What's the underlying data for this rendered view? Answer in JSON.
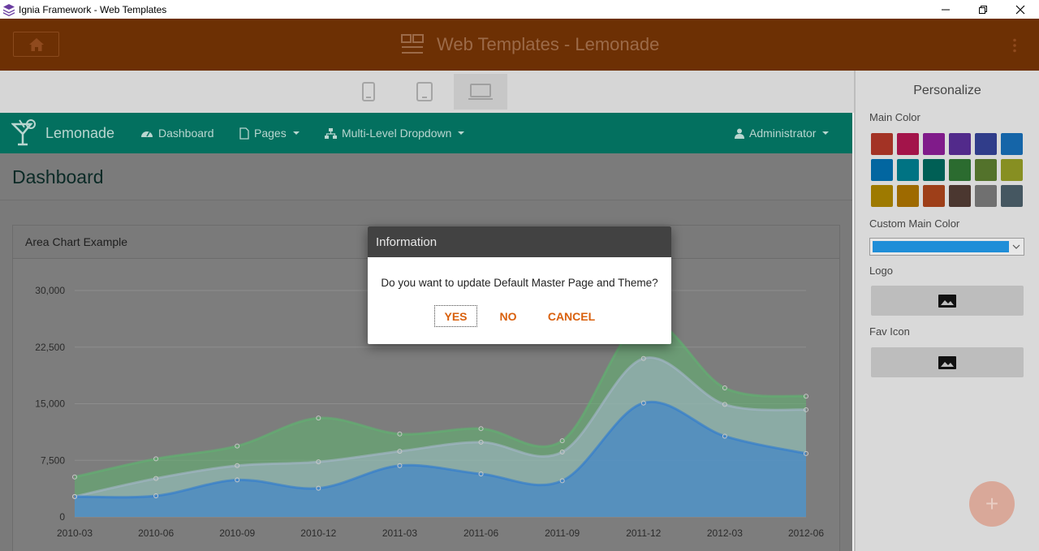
{
  "window": {
    "title": "Ignia Framework - Web Templates",
    "controls": [
      "minimize",
      "restore",
      "close"
    ]
  },
  "header": {
    "title": "Web Templates - Lemonade",
    "icons": [
      "home-icon",
      "layout-icon",
      "more-vert-icon"
    ]
  },
  "devices": [
    "phone",
    "tablet",
    "laptop"
  ],
  "panel": {
    "title": "Personalize",
    "main_color_label": "Main Color",
    "swatches": [
      "#a33325",
      "#a3144a",
      "#801b8a",
      "#522a8b",
      "#303d8a",
      "#1565a8",
      "#0266a0",
      "#007383",
      "#005f55",
      "#2b6b2f",
      "#53722b",
      "#878f22",
      "#9e7a00",
      "#9e6a00",
      "#9e3f19",
      "#4b3730",
      "#707070",
      "#455761"
    ],
    "custom_color_label": "Custom Main Color",
    "custom_color_value": "#1f8ed8",
    "logo_label": "Logo",
    "fav_icon_label": "Fav Icon",
    "fab_label": "+"
  },
  "site": {
    "brand": "Lemonade",
    "nav": {
      "dashboard": "Dashboard",
      "pages": "Pages",
      "multilevel": "Multi-Level Dropdown",
      "user": "Administrator"
    },
    "page_title": "Dashboard",
    "card_title": "Area Chart Example"
  },
  "chart_data": {
    "type": "area",
    "title": "Area Chart Example",
    "stacked": true,
    "categories": [
      "2010-03",
      "2010-06",
      "2010-09",
      "2010-12",
      "2011-03",
      "2011-06",
      "2011-09",
      "2011-12",
      "2012-03",
      "2012-06"
    ],
    "y_ticks": [
      "0",
      "7,500",
      "15,000",
      "22,500",
      "30,000"
    ],
    "ylim": [
      0,
      30000
    ],
    "grid": true,
    "series": [
      {
        "color": "#2c7ad1",
        "values": [
          2700,
          2800,
          4900,
          3800,
          6800,
          5700,
          4800,
          15100,
          10700,
          8400
        ]
      },
      {
        "color": "#a6b8cc",
        "values": [
          0,
          2300,
          1900,
          3500,
          1900,
          4200,
          3800,
          5900,
          4200,
          5800
        ]
      },
      {
        "color": "#5fb470",
        "values": [
          2600,
          2600,
          2600,
          5800,
          2300,
          1800,
          1500,
          5000,
          2200,
          1800
        ]
      }
    ],
    "colors": {
      "axis_text": "#2b2b2b",
      "grid": "#8d8d8d"
    }
  },
  "dialog": {
    "title": "Information",
    "message": "Do you want to update Default Master Page and Theme?",
    "yes": "YES",
    "no": "NO",
    "cancel": "CANCEL"
  }
}
